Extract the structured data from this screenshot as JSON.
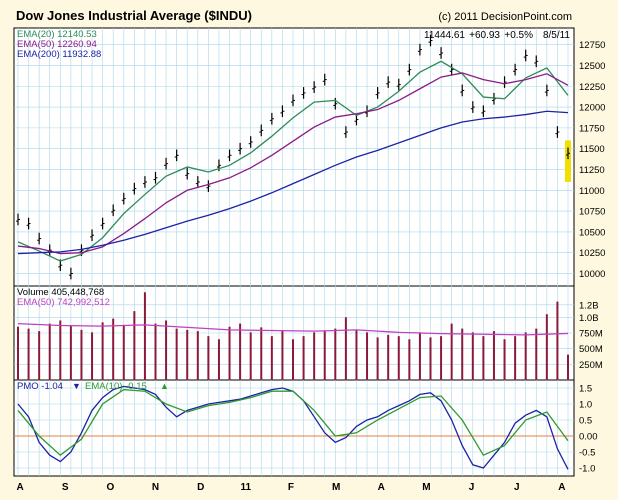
{
  "title": "Dow Jones Industrial Average ($INDU)",
  "copyright": "(c) 2011 DecisionPoint.com",
  "last_quote": {
    "close": "11444.61",
    "change": "+60.93",
    "pct": "+0.5%",
    "date": "8/5/11"
  },
  "colors": {
    "background": "#fdf8df",
    "plot_bg": "#ffffff",
    "grid": "#a9d7e8",
    "price": "#000000",
    "ema20": "#2e8b57",
    "ema50": "#8b1a89",
    "ema200": "#1c23a6",
    "volume": "#8b1a3a",
    "vol_ema": "#c040c0",
    "pmo": "#1c23a6",
    "pmo_ema": "#2e9a2e",
    "zero_line": "#e08040",
    "highlight": "#f0e000"
  },
  "x_axis": {
    "ticks": [
      "A",
      "S",
      "O",
      "N",
      "D",
      "11",
      "F",
      "M",
      "A",
      "M",
      "J",
      "J",
      "A"
    ]
  },
  "chart_data": [
    {
      "type": "line",
      "panel": "price",
      "x_unit": "trading days",
      "ylim": [
        9850,
        12950
      ],
      "y_ticks": [
        10000,
        10250,
        10500,
        10750,
        11000,
        11250,
        11500,
        11750,
        12000,
        12250,
        12500,
        12750
      ],
      "legend": [
        {
          "label": "EMA(20) 12140.53",
          "color": "#2e8b57"
        },
        {
          "label": "EMA(50) 12260.94",
          "color": "#8b1a89"
        },
        {
          "label": "EMA(200) 11932.88",
          "color": "#1c23a6"
        }
      ],
      "series": [
        {
          "name": "Price",
          "style": "ohlc-bars",
          "color": "#000000",
          "x": [
            0,
            5,
            10,
            15,
            20,
            25,
            30,
            35,
            40,
            45,
            50,
            55,
            60,
            65,
            70,
            75,
            80,
            85,
            90,
            95,
            100,
            105,
            110,
            115,
            120,
            125,
            130,
            135,
            140,
            145,
            150,
            155,
            160,
            165,
            170,
            175,
            180,
            185,
            190,
            195,
            200,
            205,
            210,
            215,
            220,
            225,
            230,
            235,
            240,
            245,
            250,
            255,
            260
          ],
          "y": [
            10650,
            10600,
            10420,
            10280,
            10100,
            10000,
            10280,
            10460,
            10600,
            10760,
            10900,
            11020,
            11100,
            11150,
            11320,
            11420,
            11200,
            11100,
            11050,
            11300,
            11420,
            11500,
            11580,
            11720,
            11860,
            11950,
            12080,
            12170,
            12240,
            12330,
            12040,
            11700,
            11850,
            11950,
            12170,
            12300,
            12270,
            12450,
            12690,
            12800,
            12650,
            12450,
            12200,
            12000,
            11950,
            12100,
            12300,
            12450,
            12620,
            12550,
            12200,
            11700,
            11444.61
          ]
        },
        {
          "name": "EMA(20)",
          "color": "#2e8b57",
          "x": [
            0,
            10,
            20,
            30,
            40,
            50,
            60,
            70,
            80,
            90,
            100,
            110,
            120,
            130,
            140,
            150,
            160,
            170,
            180,
            190,
            200,
            210,
            220,
            230,
            240,
            250,
            260
          ],
          "y": [
            10380,
            10270,
            10150,
            10230,
            10430,
            10720,
            10950,
            11170,
            11280,
            11220,
            11300,
            11450,
            11650,
            11870,
            12060,
            12080,
            11900,
            12000,
            12190,
            12420,
            12550,
            12400,
            12120,
            12100,
            12350,
            12470,
            12140.53
          ]
        },
        {
          "name": "EMA(50)",
          "color": "#8b1a89",
          "x": [
            0,
            10,
            20,
            30,
            40,
            50,
            60,
            70,
            80,
            90,
            100,
            110,
            120,
            130,
            140,
            150,
            160,
            170,
            180,
            190,
            200,
            210,
            220,
            230,
            240,
            250,
            260
          ],
          "y": [
            10330,
            10300,
            10240,
            10250,
            10320,
            10480,
            10660,
            10850,
            11000,
            11070,
            11150,
            11270,
            11420,
            11590,
            11760,
            11880,
            11920,
            11970,
            12080,
            12220,
            12360,
            12410,
            12330,
            12280,
            12330,
            12400,
            12260.94
          ]
        },
        {
          "name": "EMA(200)",
          "color": "#1c23a6",
          "x": [
            0,
            10,
            20,
            30,
            40,
            50,
            60,
            70,
            80,
            90,
            100,
            110,
            120,
            130,
            140,
            150,
            160,
            170,
            180,
            190,
            200,
            210,
            220,
            230,
            240,
            250,
            260
          ],
          "y": [
            10240,
            10250,
            10260,
            10290,
            10340,
            10400,
            10470,
            10550,
            10630,
            10700,
            10780,
            10870,
            10970,
            11080,
            11190,
            11300,
            11400,
            11480,
            11570,
            11660,
            11750,
            11820,
            11860,
            11880,
            11910,
            11950,
            11932.88
          ]
        }
      ]
    },
    {
      "type": "bar",
      "panel": "volume",
      "ylim": [
        0,
        1500000000
      ],
      "y_ticks": [
        {
          "v": 250000000,
          "label": "250M"
        },
        {
          "v": 500000000,
          "label": "500M"
        },
        {
          "v": 750000000,
          "label": "750M"
        },
        {
          "v": 1000000000,
          "label": "1.0B"
        },
        {
          "v": 1200000000,
          "label": "1.2B"
        }
      ],
      "legend": [
        {
          "label": "Volume  405,448,768",
          "color": "#000000"
        },
        {
          "label": "EMA(50) 742,992,512",
          "color": "#c040c0"
        }
      ],
      "series": [
        {
          "name": "Volume",
          "color": "#8b1a3a",
          "x": [
            0,
            5,
            10,
            15,
            20,
            25,
            30,
            35,
            40,
            45,
            50,
            55,
            60,
            65,
            70,
            75,
            80,
            85,
            90,
            95,
            100,
            105,
            110,
            115,
            120,
            125,
            130,
            135,
            140,
            145,
            150,
            155,
            160,
            165,
            170,
            175,
            180,
            185,
            190,
            195,
            200,
            205,
            210,
            215,
            220,
            225,
            230,
            235,
            240,
            245,
            250,
            255,
            260
          ],
          "y": [
            850000000,
            820000000,
            780000000,
            900000000,
            950000000,
            870000000,
            800000000,
            760000000,
            920000000,
            980000000,
            880000000,
            1100000000,
            1400000000,
            900000000,
            950000000,
            820000000,
            800000000,
            780000000,
            700000000,
            650000000,
            850000000,
            900000000,
            760000000,
            840000000,
            700000000,
            780000000,
            650000000,
            700000000,
            760000000,
            780000000,
            820000000,
            1000000000,
            800000000,
            760000000,
            680000000,
            720000000,
            700000000,
            650000000,
            760000000,
            680000000,
            700000000,
            900000000,
            820000000,
            760000000,
            700000000,
            780000000,
            650000000,
            700000000,
            760000000,
            820000000,
            1050000000,
            1250000000,
            405448768
          ]
        },
        {
          "name": "EMA(50)",
          "color": "#c040c0",
          "x": [
            0,
            20,
            40,
            60,
            80,
            100,
            120,
            140,
            160,
            180,
            200,
            220,
            240,
            260
          ],
          "y": [
            900000000,
            870000000,
            860000000,
            880000000,
            840000000,
            800000000,
            790000000,
            780000000,
            800000000,
            760000000,
            740000000,
            730000000,
            720000000,
            742992512
          ]
        }
      ]
    },
    {
      "type": "line",
      "panel": "pmo",
      "ylim": [
        -1.25,
        1.75
      ],
      "y_ticks": [
        {
          "v": -1.0,
          "label": "-1.0"
        },
        {
          "v": -0.5,
          "label": "-0.5"
        },
        {
          "v": 0.0,
          "label": "0.00"
        },
        {
          "v": 0.5,
          "label": "0.5"
        },
        {
          "v": 1.0,
          "label": "1.0"
        },
        {
          "v": 1.5,
          "label": "1.5"
        }
      ],
      "legend": [
        {
          "label": "PMO  -1.04",
          "color": "#1c23a6"
        },
        {
          "label": "EMA(10)  -0.15",
          "color": "#2e9a2e"
        }
      ],
      "series": [
        {
          "name": "PMO",
          "color": "#1c23a6",
          "x": [
            0,
            5,
            10,
            15,
            20,
            25,
            30,
            35,
            40,
            45,
            50,
            55,
            60,
            65,
            70,
            75,
            80,
            85,
            90,
            95,
            100,
            105,
            110,
            115,
            120,
            125,
            130,
            135,
            140,
            145,
            150,
            155,
            160,
            165,
            170,
            175,
            180,
            185,
            190,
            195,
            200,
            205,
            210,
            215,
            220,
            225,
            230,
            235,
            240,
            245,
            250,
            255,
            260
          ],
          "y": [
            1.0,
            0.6,
            -0.2,
            -0.6,
            -0.8,
            -0.5,
            0.1,
            0.8,
            1.2,
            1.45,
            1.55,
            1.5,
            1.45,
            1.3,
            0.9,
            0.6,
            0.8,
            0.9,
            1.0,
            1.05,
            1.1,
            1.15,
            1.25,
            1.35,
            1.45,
            1.5,
            1.4,
            1.1,
            0.6,
            0.1,
            -0.2,
            -0.05,
            0.3,
            0.5,
            0.6,
            0.8,
            0.95,
            1.1,
            1.3,
            1.35,
            1.1,
            0.5,
            -0.3,
            -0.9,
            -1.0,
            -0.6,
            -0.2,
            0.4,
            0.65,
            0.8,
            0.6,
            -0.4,
            -1.04
          ]
        },
        {
          "name": "EMA(10)",
          "color": "#2e9a2e",
          "x": [
            0,
            10,
            20,
            30,
            40,
            50,
            60,
            70,
            80,
            90,
            100,
            110,
            120,
            130,
            140,
            150,
            160,
            170,
            180,
            190,
            200,
            210,
            220,
            230,
            240,
            250,
            260
          ],
          "y": [
            0.8,
            0.0,
            -0.6,
            -0.1,
            1.0,
            1.45,
            1.4,
            1.0,
            0.75,
            0.95,
            1.05,
            1.2,
            1.4,
            1.4,
            0.8,
            0.0,
            0.1,
            0.5,
            0.85,
            1.2,
            1.25,
            0.5,
            -0.6,
            -0.3,
            0.5,
            0.75,
            -0.15
          ]
        }
      ]
    }
  ]
}
